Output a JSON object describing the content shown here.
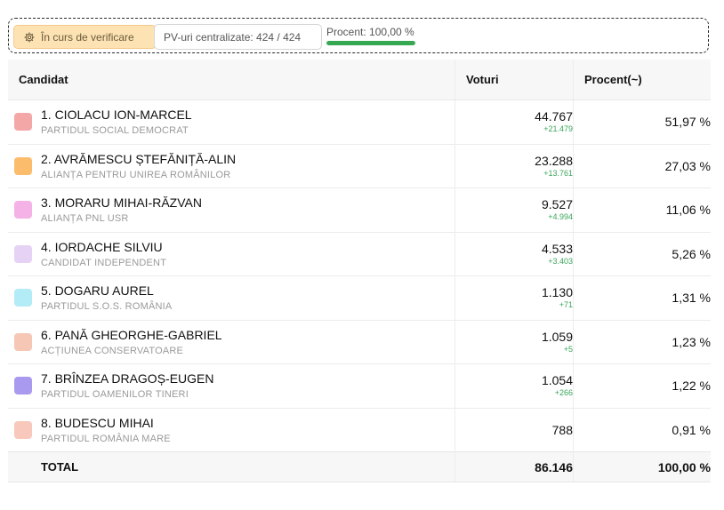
{
  "status_badge": {
    "label": "În curs de verificare",
    "icon": "gear-icon"
  },
  "pv_badge": {
    "label": "PV-uri centralizate: 424 / 424"
  },
  "percent": {
    "label": "Procent: 100,00 %",
    "value": 1.0,
    "color": "#36a852"
  },
  "table": {
    "headers": {
      "candidate": "Candidat",
      "votes": "Voturi",
      "percent": "Procent(~)"
    },
    "rows": [
      {
        "name": "1. CIOLACU ION-MARCEL",
        "party": "PARTIDUL SOCIAL DEMOCRAT",
        "votes": "44.767",
        "delta": "+21.479",
        "percent": "51,97 %",
        "color": "#f4a7a7"
      },
      {
        "name": "2. AVRĂMESCU ȘTEFĂNIȚĂ-ALIN",
        "party": "ALIANȚA PENTRU UNIREA ROMÂNILOR",
        "votes": "23.288",
        "delta": "+13.761",
        "percent": "27,03 %",
        "color": "#fbbd6c"
      },
      {
        "name": "3. MORARU MIHAI-RĂZVAN",
        "party": "ALIANȚA PNL USR",
        "votes": "9.527",
        "delta": "+4.994",
        "percent": "11,06 %",
        "color": "#f4b2e6"
      },
      {
        "name": "4. IORDACHE SILVIU",
        "party": "CANDIDAT INDEPENDENT",
        "votes": "4.533",
        "delta": "+3.403",
        "percent": "5,26 %",
        "color": "#e6d2f5"
      },
      {
        "name": "5. DOGARU AUREL",
        "party": "PARTIDUL S.O.S. ROMÂNIA",
        "votes": "1.130",
        "delta": "+71",
        "percent": "1,31 %",
        "color": "#b3ecf7"
      },
      {
        "name": "6. PANĂ GHEORGHE-GABRIEL",
        "party": "ACȚIUNEA CONSERVATOARE",
        "votes": "1.059",
        "delta": "+5",
        "percent": "1,23 %",
        "color": "#f6c7b4"
      },
      {
        "name": "7. BRÎNZEA DRAGOȘ-EUGEN",
        "party": "PARTIDUL OAMENILOR TINERI",
        "votes": "1.054",
        "delta": "+266",
        "percent": "1,22 %",
        "color": "#a99af0"
      },
      {
        "name": "8. BUDESCU MIHAI",
        "party": "PARTIDUL ROMÂNIA MARE",
        "votes": "788",
        "delta": "",
        "percent": "0,91 %",
        "color": "#f7c8bb"
      }
    ],
    "total": {
      "label": "TOTAL",
      "votes": "86.146",
      "percent": "100,00 %"
    }
  }
}
